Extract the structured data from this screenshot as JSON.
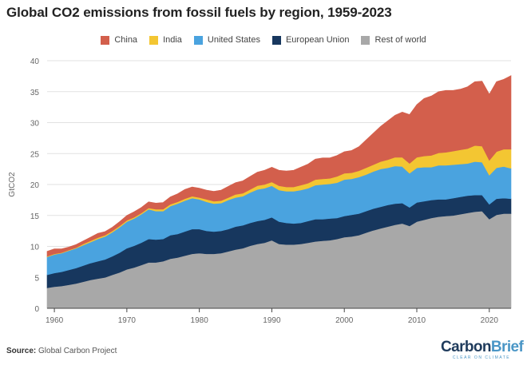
{
  "title": "Global CO2 emissions from fossil fuels by region, 1959-2023",
  "source_label": "Source:",
  "source_text": "Global Carbon Project",
  "logo": {
    "part1": "Carbon",
    "part2": "Brief",
    "tagline": "CLEAR ON CLIMATE"
  },
  "chart_data": {
    "type": "area",
    "stacked": true,
    "ylabel": "GtCO2",
    "xlabel": "",
    "xlim": [
      1959,
      2023
    ],
    "ylim": [
      0,
      40
    ],
    "yticks": [
      0,
      5,
      10,
      15,
      20,
      25,
      30,
      35,
      40
    ],
    "xticks": [
      1960,
      1970,
      1980,
      1990,
      2000,
      2010,
      2020
    ],
    "grid": true,
    "legend_position": "top",
    "x": [
      1959,
      1960,
      1961,
      1962,
      1963,
      1964,
      1965,
      1966,
      1967,
      1968,
      1969,
      1970,
      1971,
      1972,
      1973,
      1974,
      1975,
      1976,
      1977,
      1978,
      1979,
      1980,
      1981,
      1982,
      1983,
      1984,
      1985,
      1986,
      1987,
      1988,
      1989,
      1990,
      1991,
      1992,
      1993,
      1994,
      1995,
      1996,
      1997,
      1998,
      1999,
      2000,
      2001,
      2002,
      2003,
      2004,
      2005,
      2006,
      2007,
      2008,
      2009,
      2010,
      2011,
      2012,
      2013,
      2014,
      2015,
      2016,
      2017,
      2018,
      2019,
      2020,
      2021,
      2022,
      2023
    ],
    "series": [
      {
        "name": "Rest of world",
        "color": "#a8a8a8",
        "values": [
          3.3,
          3.5,
          3.6,
          3.8,
          4.0,
          4.3,
          4.6,
          4.8,
          5.0,
          5.4,
          5.8,
          6.3,
          6.6,
          7.0,
          7.4,
          7.4,
          7.6,
          8.0,
          8.2,
          8.5,
          8.8,
          8.9,
          8.8,
          8.8,
          8.9,
          9.2,
          9.5,
          9.7,
          10.1,
          10.4,
          10.6,
          11.0,
          10.4,
          10.3,
          10.3,
          10.4,
          10.6,
          10.8,
          10.9,
          11.0,
          11.2,
          11.5,
          11.6,
          11.8,
          12.2,
          12.6,
          12.9,
          13.2,
          13.5,
          13.7,
          13.3,
          14.0,
          14.3,
          14.6,
          14.8,
          14.9,
          15.0,
          15.2,
          15.4,
          15.6,
          15.7,
          14.4,
          15.1,
          15.3,
          15.3
        ]
      },
      {
        "name": "European Union",
        "color": "#17375e",
        "values": [
          2.1,
          2.2,
          2.3,
          2.4,
          2.5,
          2.6,
          2.7,
          2.8,
          2.9,
          3.0,
          3.2,
          3.4,
          3.5,
          3.6,
          3.8,
          3.7,
          3.6,
          3.8,
          3.8,
          3.9,
          4.0,
          3.9,
          3.7,
          3.6,
          3.6,
          3.6,
          3.7,
          3.7,
          3.7,
          3.7,
          3.7,
          3.7,
          3.6,
          3.5,
          3.4,
          3.4,
          3.5,
          3.6,
          3.5,
          3.5,
          3.4,
          3.4,
          3.5,
          3.5,
          3.5,
          3.5,
          3.5,
          3.5,
          3.4,
          3.3,
          3.0,
          3.1,
          3.0,
          2.9,
          2.8,
          2.7,
          2.8,
          2.8,
          2.8,
          2.7,
          2.6,
          2.4,
          2.6,
          2.5,
          2.4
        ]
      },
      {
        "name": "United States",
        "color": "#4aa3df",
        "values": [
          2.9,
          3.0,
          3.0,
          3.1,
          3.2,
          3.3,
          3.4,
          3.6,
          3.7,
          3.9,
          4.1,
          4.3,
          4.4,
          4.6,
          4.8,
          4.6,
          4.5,
          4.7,
          4.9,
          5.0,
          5.0,
          4.8,
          4.7,
          4.5,
          4.5,
          4.7,
          4.7,
          4.7,
          4.9,
          5.1,
          5.1,
          5.1,
          5.1,
          5.1,
          5.2,
          5.3,
          5.3,
          5.5,
          5.6,
          5.6,
          5.7,
          5.9,
          5.8,
          5.9,
          5.9,
          6.0,
          6.1,
          6.0,
          6.1,
          5.9,
          5.5,
          5.6,
          5.5,
          5.3,
          5.5,
          5.5,
          5.4,
          5.3,
          5.2,
          5.4,
          5.3,
          4.7,
          5.0,
          5.1,
          4.9
        ]
      },
      {
        "name": "India",
        "color": "#f3c632",
        "values": [
          0.1,
          0.1,
          0.1,
          0.1,
          0.1,
          0.2,
          0.2,
          0.2,
          0.2,
          0.2,
          0.2,
          0.2,
          0.2,
          0.2,
          0.2,
          0.3,
          0.3,
          0.3,
          0.3,
          0.3,
          0.3,
          0.3,
          0.4,
          0.4,
          0.4,
          0.4,
          0.5,
          0.5,
          0.5,
          0.6,
          0.6,
          0.6,
          0.7,
          0.7,
          0.7,
          0.8,
          0.8,
          0.9,
          0.9,
          0.9,
          1.0,
          1.0,
          1.0,
          1.0,
          1.1,
          1.1,
          1.2,
          1.3,
          1.4,
          1.5,
          1.6,
          1.7,
          1.8,
          1.9,
          2.0,
          2.1,
          2.2,
          2.3,
          2.4,
          2.6,
          2.6,
          2.4,
          2.6,
          2.8,
          3.1
        ]
      },
      {
        "name": "China",
        "color": "#d35f4c",
        "values": [
          0.8,
          0.8,
          0.6,
          0.5,
          0.5,
          0.5,
          0.6,
          0.7,
          0.6,
          0.6,
          0.7,
          0.8,
          0.9,
          0.9,
          1.0,
          1.0,
          1.1,
          1.2,
          1.3,
          1.5,
          1.5,
          1.5,
          1.5,
          1.6,
          1.7,
          1.8,
          1.9,
          2.0,
          2.1,
          2.2,
          2.3,
          2.4,
          2.5,
          2.6,
          2.7,
          2.9,
          3.1,
          3.3,
          3.4,
          3.3,
          3.4,
          3.5,
          3.6,
          3.9,
          4.5,
          5.1,
          5.7,
          6.3,
          6.8,
          7.3,
          7.9,
          8.5,
          9.3,
          9.6,
          9.9,
          10.0,
          9.8,
          9.8,
          10.0,
          10.3,
          10.5,
          10.7,
          11.3,
          11.3,
          11.9
        ]
      }
    ]
  }
}
